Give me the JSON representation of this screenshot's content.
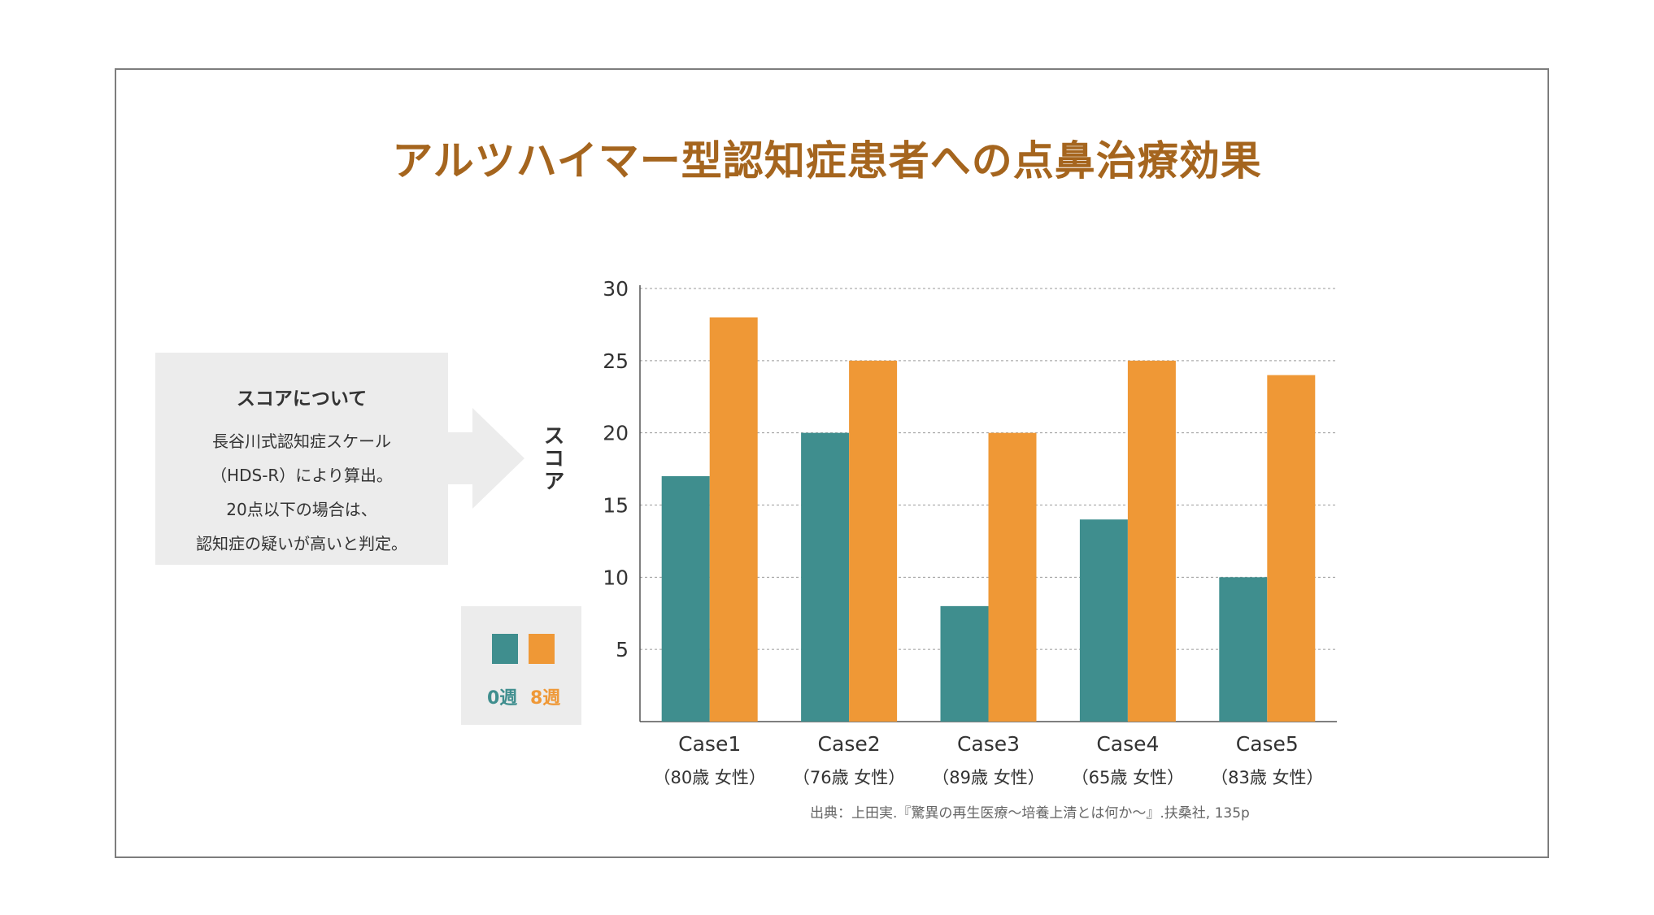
{
  "title": "アルツハイマー型認知症患者への点鼻治療効果",
  "note": {
    "heading": "スコアについて",
    "lines": [
      "長谷川式認知症スケール",
      "（HDS-R）により算出。",
      "20点以下の場合は、",
      "認知症の疑いが高いと判定。"
    ]
  },
  "legend": {
    "week0_label": "0週",
    "week8_label": "8週"
  },
  "colors": {
    "week0": "#3f8e8e",
    "week8": "#ef9836",
    "title": "#a5651e"
  },
  "source": "出典：上田実.『驚異の再生医療〜培養上清とは何か〜』.扶桑社, 135p",
  "chart_data": {
    "type": "bar",
    "title": "",
    "xlabel": "",
    "ylabel": "スコア",
    "ylim": [
      0,
      30
    ],
    "yticks": [
      5,
      10,
      15,
      20,
      25,
      30
    ],
    "grid": true,
    "legend_position": "left",
    "categories": [
      "Case1",
      "Case2",
      "Case3",
      "Case4",
      "Case5"
    ],
    "category_subtitles": [
      "（80歳 女性）",
      "（76歳 女性）",
      "（89歳 女性）",
      "（65歳 女性）",
      "（83歳 女性）"
    ],
    "series": [
      {
        "name": "0週",
        "values": [
          17,
          20,
          8,
          14,
          10
        ]
      },
      {
        "name": "8週",
        "values": [
          28,
          25,
          20,
          25,
          24
        ]
      }
    ]
  }
}
